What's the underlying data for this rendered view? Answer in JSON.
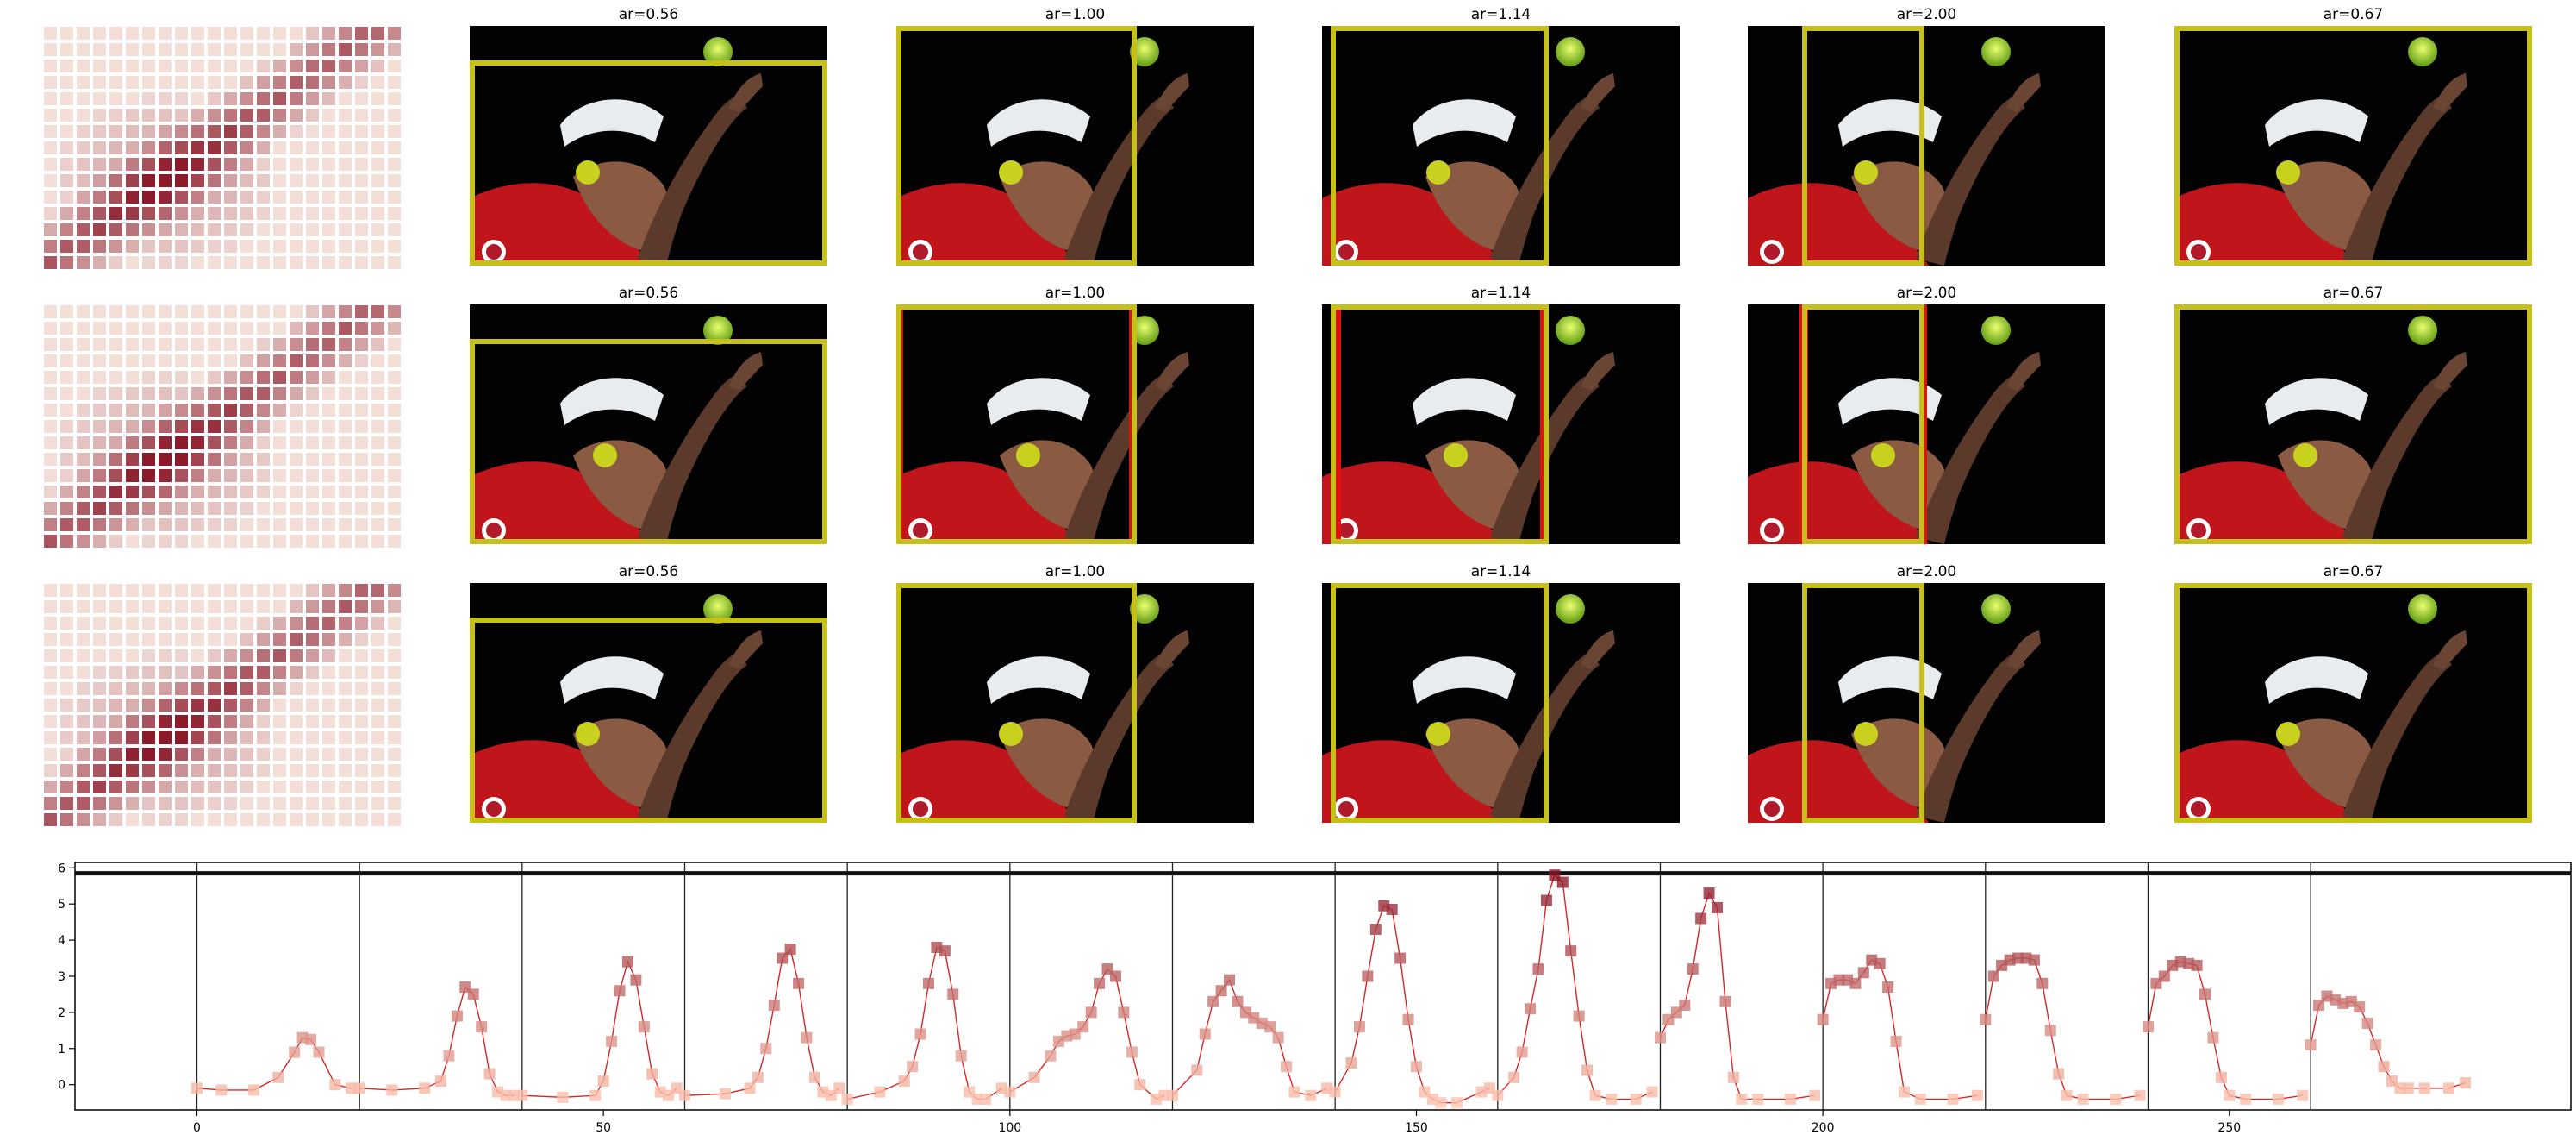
{
  "panels": {
    "rows": [
      {
        "frames": [
          {
            "title": "ar=0.56",
            "box_outline": "yellow"
          },
          {
            "title": "ar=1.00",
            "box_outline": "yellow"
          },
          {
            "title": "ar=1.14",
            "box_outline": "yellow"
          },
          {
            "title": "ar=2.00",
            "box_outline": "yellow"
          },
          {
            "title": "ar=0.67",
            "box_outline": "yellow"
          }
        ]
      },
      {
        "frames": [
          {
            "title": "ar=0.56",
            "box_outline": "yellow"
          },
          {
            "title": "ar=1.00",
            "box_outline": "yellow",
            "red_guides": true
          },
          {
            "title": "ar=1.14",
            "box_outline": "yellow",
            "red_guides": true
          },
          {
            "title": "ar=2.00",
            "box_outline": "yellow",
            "red_guides": true
          },
          {
            "title": "ar=0.67",
            "box_outline": "yellow"
          }
        ]
      },
      {
        "frames": [
          {
            "title": "ar=0.56",
            "box_outline": "yellow"
          },
          {
            "title": "ar=1.00",
            "box_outline": "yellow"
          },
          {
            "title": "ar=1.14",
            "box_outline": "yellow"
          },
          {
            "title": "ar=2.00",
            "box_outline": "yellow"
          },
          {
            "title": "ar=0.67",
            "box_outline": "yellow"
          }
        ]
      }
    ],
    "colors": {
      "box": "#c8c01a",
      "guide": "#e01010",
      "ball": "#c8d21e",
      "heat_low": "#f6e6e1",
      "heat_high": "#8b1a2a"
    }
  },
  "chart_data": {
    "type": "line",
    "xlim": [
      -15,
      292
    ],
    "ylim": [
      -0.7,
      6.15
    ],
    "xticks": [
      0,
      50,
      100,
      150,
      200,
      250
    ],
    "yticks": [
      0,
      1,
      2,
      3,
      4,
      5,
      6
    ],
    "hline": 5.85,
    "vlines": [
      0,
      20,
      40,
      60,
      80,
      100,
      120,
      140,
      160,
      180,
      200,
      220,
      240,
      260
    ],
    "grid": false,
    "legend": "none",
    "line_color": "#d62728",
    "segments": [
      {
        "x": [
          0,
          3,
          7,
          10,
          12,
          13,
          14,
          15,
          17,
          19
        ],
        "y": [
          -0.1,
          -0.15,
          -0.15,
          0.2,
          0.9,
          1.3,
          1.25,
          0.9,
          0.0,
          -0.1
        ]
      },
      {
        "x": [
          20,
          24,
          28,
          30,
          31,
          32,
          33,
          34,
          35,
          36,
          37,
          38,
          39
        ],
        "y": [
          -0.1,
          -0.15,
          -0.1,
          0.1,
          0.8,
          1.9,
          2.7,
          2.5,
          1.6,
          0.3,
          -0.2,
          -0.3,
          -0.3
        ]
      },
      {
        "x": [
          40,
          45,
          49,
          50,
          51,
          52,
          53,
          54,
          55,
          56,
          57,
          58,
          59
        ],
        "y": [
          -0.3,
          -0.35,
          -0.3,
          0.1,
          1.2,
          2.6,
          3.4,
          2.9,
          1.6,
          0.3,
          -0.2,
          -0.3,
          -0.1
        ]
      },
      {
        "x": [
          60,
          65,
          68,
          69,
          70,
          71,
          72,
          73,
          74,
          75,
          76,
          77,
          78,
          79
        ],
        "y": [
          -0.3,
          -0.25,
          -0.1,
          0.2,
          1.0,
          2.2,
          3.5,
          3.75,
          2.8,
          1.3,
          0.2,
          -0.2,
          -0.3,
          -0.1
        ]
      },
      {
        "x": [
          80,
          84,
          87,
          88,
          89,
          90,
          91,
          92,
          93,
          94,
          95,
          96,
          97,
          99
        ],
        "y": [
          -0.4,
          -0.2,
          0.1,
          0.5,
          1.4,
          2.8,
          3.8,
          3.7,
          2.5,
          0.8,
          -0.2,
          -0.4,
          -0.4,
          -0.1
        ]
      },
      {
        "x": [
          100,
          103,
          105,
          106,
          107,
          108,
          109,
          110,
          111,
          112,
          113,
          114,
          115,
          116,
          118,
          119
        ],
        "y": [
          -0.2,
          0.2,
          0.8,
          1.2,
          1.35,
          1.4,
          1.6,
          2.0,
          2.8,
          3.2,
          3.0,
          2.0,
          0.9,
          0.0,
          -0.4,
          -0.3
        ]
      },
      {
        "x": [
          120,
          123,
          124,
          125,
          126,
          127,
          128,
          129,
          130,
          131,
          132,
          133,
          134,
          135,
          137,
          139
        ],
        "y": [
          -0.3,
          0.4,
          1.4,
          2.3,
          2.6,
          2.9,
          2.3,
          2.0,
          1.85,
          1.7,
          1.6,
          1.3,
          0.5,
          -0.2,
          -0.3,
          -0.1
        ]
      },
      {
        "x": [
          140,
          142,
          143,
          144,
          145,
          146,
          147,
          148,
          149,
          150,
          151,
          152,
          153,
          155,
          158,
          159
        ],
        "y": [
          -0.2,
          0.6,
          1.6,
          3.0,
          4.3,
          4.95,
          4.85,
          3.5,
          1.8,
          0.5,
          -0.2,
          -0.4,
          -0.5,
          -0.5,
          -0.2,
          -0.1
        ]
      },
      {
        "x": [
          160,
          162,
          163,
          164,
          165,
          166,
          167,
          168,
          169,
          170,
          171,
          172,
          174,
          177,
          179
        ],
        "y": [
          -0.3,
          0.2,
          0.9,
          2.1,
          3.2,
          5.1,
          5.8,
          5.6,
          3.7,
          1.9,
          0.4,
          -0.3,
          -0.4,
          -0.4,
          -0.2
        ]
      },
      {
        "x": [
          180,
          181,
          182,
          183,
          184,
          185,
          186,
          187,
          188,
          189,
          190,
          192,
          196,
          199
        ],
        "y": [
          1.3,
          1.8,
          2.0,
          2.2,
          3.2,
          4.6,
          5.3,
          4.9,
          2.3,
          0.2,
          -0.4,
          -0.4,
          -0.4,
          -0.3
        ]
      },
      {
        "x": [
          200,
          201,
          202,
          203,
          204,
          205,
          206,
          207,
          208,
          209,
          210,
          212,
          216,
          219
        ],
        "y": [
          1.8,
          2.8,
          2.9,
          2.9,
          2.8,
          3.1,
          3.45,
          3.35,
          2.7,
          1.2,
          -0.2,
          -0.4,
          -0.4,
          -0.3
        ]
      },
      {
        "x": [
          220,
          221,
          222,
          223,
          224,
          225,
          226,
          227,
          228,
          229,
          230,
          232,
          236,
          239
        ],
        "y": [
          1.8,
          3.0,
          3.3,
          3.45,
          3.5,
          3.5,
          3.45,
          2.8,
          1.5,
          0.3,
          -0.3,
          -0.4,
          -0.4,
          -0.3
        ]
      },
      {
        "x": [
          240,
          241,
          242,
          243,
          244,
          245,
          246,
          247,
          248,
          249,
          250,
          252,
          256,
          259
        ],
        "y": [
          1.6,
          2.8,
          3.0,
          3.3,
          3.4,
          3.35,
          3.3,
          2.5,
          1.3,
          0.2,
          -0.3,
          -0.4,
          -0.4,
          -0.3
        ]
      },
      {
        "x": [
          260,
          261,
          262,
          263,
          264,
          265,
          266,
          267,
          268,
          269,
          270,
          271,
          272,
          274,
          277,
          279
        ],
        "y": [
          1.1,
          2.2,
          2.45,
          2.35,
          2.25,
          2.3,
          2.15,
          1.7,
          1.1,
          0.5,
          0.1,
          -0.1,
          -0.1,
          -0.1,
          -0.1,
          0.05
        ]
      }
    ]
  }
}
